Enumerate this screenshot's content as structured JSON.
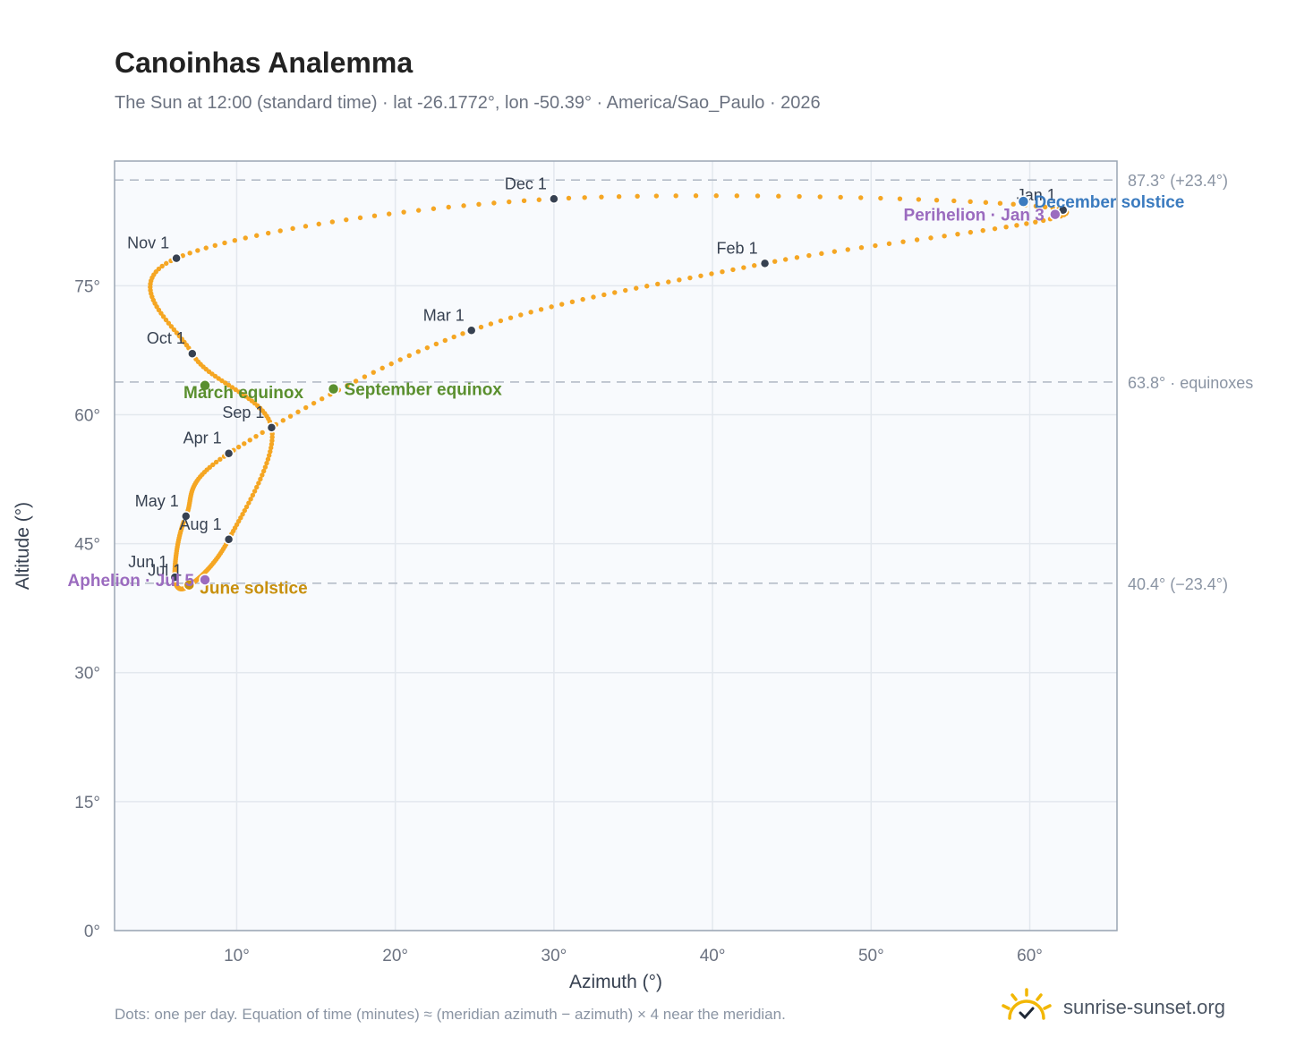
{
  "title": "Canoinhas Analemma",
  "subtitle": "The Sun at 12:00 (standard time) · lat -26.1772°, lon -50.39° · America/Sao_Paulo · 2026",
  "footnote": "Dots: one per day. Equation of time (minutes) ≈ (meridian azimuth − azimuth) × 4 near the meridian.",
  "brand": "sunrise-sunset.org",
  "colors": {
    "curve": "#f5a623",
    "month_dot": "#374151",
    "equinox": "#5a8f2e",
    "june_solstice": "#c8900e",
    "december_solstice": "#3b7bbf",
    "apsis": "#9b6bbf",
    "plot_bg": "#f8fafd",
    "grid": "#e3e8ee",
    "frame": "#9aa5b4",
    "ref_line": "#b5bdc8"
  },
  "chart_data": {
    "type": "scatter",
    "title": "Canoinhas Analemma",
    "xlabel": "Azimuth (°)",
    "ylabel": "Altitude (°)",
    "xlim": [
      2.3,
      65.5
    ],
    "ylim": [
      0,
      89.5
    ],
    "x_ticks": [
      "10°",
      "20°",
      "30°",
      "40°",
      "50°",
      "60°"
    ],
    "y_ticks": [
      "0°",
      "15°",
      "30°",
      "45°",
      "60°",
      "75°"
    ],
    "grid": true,
    "reference_lines": [
      {
        "y": 87.3,
        "label": "87.3° (+23.4°)"
      },
      {
        "y": 63.8,
        "label": "63.8° · equinoxes"
      },
      {
        "y": 40.4,
        "label": "40.4° (−23.4°)"
      }
    ],
    "months": [
      {
        "label": "Jan 1",
        "x": 62.1,
        "y": 83.8
      },
      {
        "label": "Feb 1",
        "x": 43.3,
        "y": 77.6
      },
      {
        "label": "Mar 1",
        "x": 24.8,
        "y": 69.8
      },
      {
        "label": "Apr 1",
        "x": 9.5,
        "y": 55.5
      },
      {
        "label": "May 1",
        "x": 6.8,
        "y": 48.2
      },
      {
        "label": "Jun 1",
        "x": 6.1,
        "y": 41.1
      },
      {
        "label": "Jul 1",
        "x": 7.0,
        "y": 40.1
      },
      {
        "label": "Aug 1",
        "x": 9.5,
        "y": 45.5
      },
      {
        "label": "Sep 1",
        "x": 12.2,
        "y": 58.5
      },
      {
        "label": "Oct 1",
        "x": 7.2,
        "y": 67.1
      },
      {
        "label": "Nov 1",
        "x": 6.2,
        "y": 78.2
      },
      {
        "label": "Dec 1",
        "x": 30.0,
        "y": 85.1
      }
    ],
    "events": [
      {
        "label": "March equinox",
        "x": 8.0,
        "y": 63.4,
        "color_key": "equinox"
      },
      {
        "label": "September equinox",
        "x": 16.1,
        "y": 63.0,
        "color_key": "equinox"
      },
      {
        "label": "June solstice",
        "x": 7.0,
        "y": 40.2,
        "color_key": "june_solstice"
      },
      {
        "label": "December solstice",
        "x": 59.6,
        "y": 84.8,
        "color_key": "december_solstice"
      },
      {
        "label": "Perihelion · Jan 3",
        "x": 61.6,
        "y": 83.3,
        "color_key": "apsis"
      },
      {
        "label": "Aphelion · Jul 5",
        "x": 8.0,
        "y": 40.8,
        "color_key": "apsis"
      }
    ]
  }
}
